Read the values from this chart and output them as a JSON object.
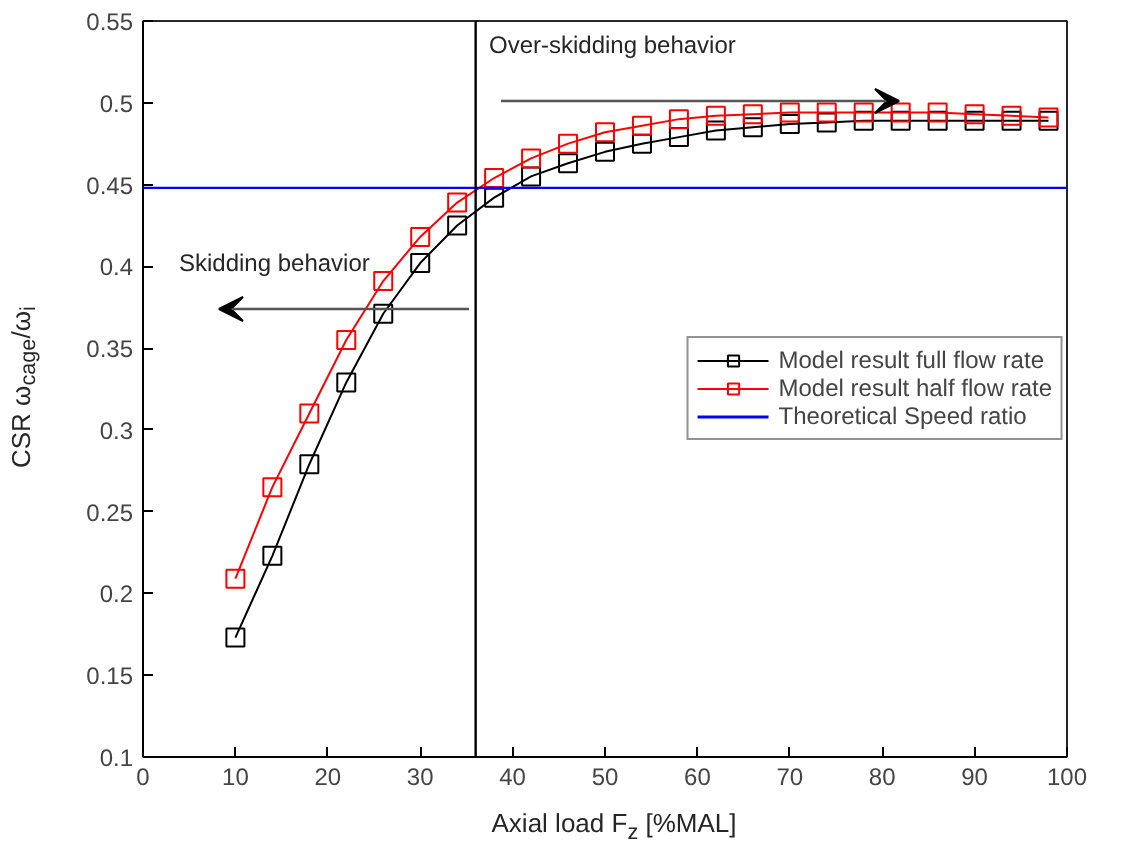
{
  "chart_data": {
    "type": "line",
    "xlabel": "Axial load F$_{z}$ [%MAL]",
    "ylabel": "CSR ω$_{cage}$/ω$_{i}$",
    "x": [
      10,
      14,
      18,
      22,
      26,
      30,
      34,
      38,
      42,
      46,
      50,
      54,
      58,
      62,
      66,
      70,
      74,
      78,
      82,
      86,
      90,
      94,
      98
    ],
    "series": [
      {
        "name": "Model result full flow rate",
        "color": "#000000",
        "values": [
          0.173,
          0.223,
          0.279,
          0.329,
          0.371,
          0.402,
          0.425,
          0.442,
          0.455,
          0.463,
          0.47,
          0.475,
          0.479,
          0.483,
          0.485,
          0.487,
          0.488,
          0.489,
          0.489,
          0.489,
          0.489,
          0.489,
          0.489
        ]
      },
      {
        "name": "Model result half flow rate",
        "color": "#ff0000",
        "values": [
          0.209,
          0.265,
          0.31,
          0.355,
          0.391,
          0.418,
          0.439,
          0.454,
          0.466,
          0.475,
          0.482,
          0.486,
          0.49,
          0.492,
          0.493,
          0.494,
          0.494,
          0.494,
          0.494,
          0.494,
          0.493,
          0.492,
          0.491
        ]
      }
    ],
    "ref_lines": [
      {
        "axis": "y",
        "value": 0.448,
        "label": "Theoretical Speed ratio",
        "color": "#0000ff"
      },
      {
        "axis": "x",
        "value": 36,
        "label": null,
        "color": "#000000"
      }
    ],
    "annotations": [
      "Skidding behavior",
      "Over-skidding behavior"
    ],
    "marker": "square",
    "legend": "right",
    "grid": false,
    "xlim": [
      0,
      100
    ],
    "xticks": [
      0,
      10,
      20,
      30,
      40,
      50,
      60,
      70,
      80,
      90,
      100
    ],
    "ylim": [
      0.1,
      0.55
    ],
    "yticks": [
      0.1,
      0.15,
      0.2,
      0.25,
      0.3,
      0.35,
      0.4,
      0.45,
      0.5,
      0.55
    ]
  }
}
